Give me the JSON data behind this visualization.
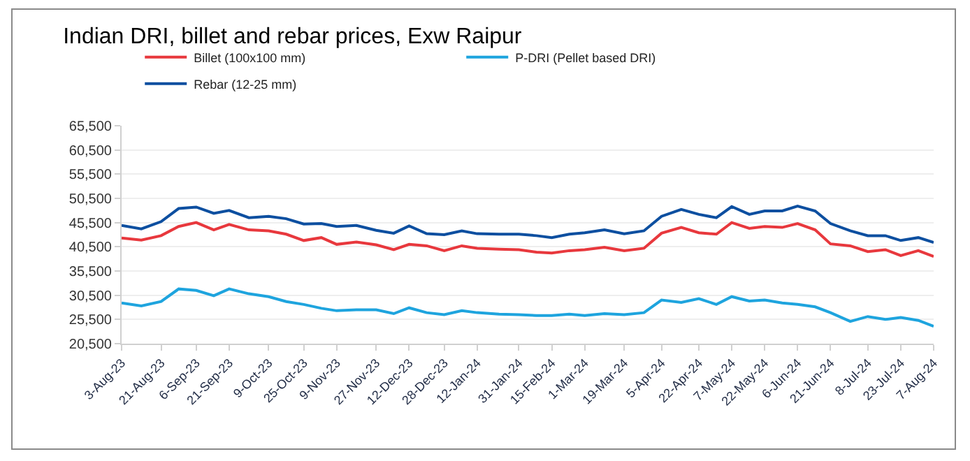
{
  "chart_data": {
    "type": "line",
    "title": "Indian DRI, billet and rebar prices, Exw Raipur",
    "x": [
      "2023-08-03",
      "2023-08-12",
      "2023-08-21",
      "2023-08-29",
      "2023-09-06",
      "2023-09-14",
      "2023-09-21",
      "2023-09-30",
      "2023-10-09",
      "2023-10-17",
      "2023-10-25",
      "2023-11-02",
      "2023-11-09",
      "2023-11-18",
      "2023-11-27",
      "2023-12-05",
      "2023-12-12",
      "2023-12-20",
      "2023-12-28",
      "2024-01-05",
      "2024-01-12",
      "2024-01-22",
      "2024-01-31",
      "2024-02-08",
      "2024-02-15",
      "2024-02-23",
      "2024-03-01",
      "2024-03-10",
      "2024-03-19",
      "2024-03-28",
      "2024-04-05",
      "2024-04-14",
      "2024-04-22",
      "2024-04-30",
      "2024-05-07",
      "2024-05-15",
      "2024-05-22",
      "2024-05-30",
      "2024-06-06",
      "2024-06-14",
      "2024-06-21",
      "2024-06-30",
      "2024-07-08",
      "2024-07-16",
      "2024-07-23",
      "2024-07-31",
      "2024-08-07"
    ],
    "series": [
      {
        "name": "Billet (100x100 mm)",
        "color": "#e8383d",
        "values": [
          42300,
          41900,
          42800,
          44700,
          45500,
          44000,
          45100,
          44000,
          43800,
          43100,
          41800,
          42400,
          41000,
          41500,
          40900,
          39900,
          41000,
          40700,
          39700,
          40700,
          40200,
          40000,
          39900,
          39400,
          39200,
          39700,
          39900,
          40400,
          39700,
          40200,
          43300,
          44500,
          43400,
          43100,
          45500,
          44300,
          44700,
          44500,
          45300,
          44000,
          41100,
          40700,
          39500,
          39900,
          38700,
          39700,
          38500
        ]
      },
      {
        "name": "P-DRI (Pellet based DRI)",
        "color": "#1ea4de",
        "values": [
          28900,
          28300,
          29200,
          31800,
          31500,
          30400,
          31800,
          30800,
          30200,
          29200,
          28600,
          27800,
          27300,
          27500,
          27500,
          26700,
          27900,
          26900,
          26500,
          27300,
          26900,
          26600,
          26500,
          26300,
          26300,
          26600,
          26300,
          26700,
          26500,
          26900,
          29500,
          29000,
          29800,
          28600,
          30200,
          29300,
          29500,
          28900,
          28600,
          28100,
          26900,
          25100,
          26100,
          25500,
          25900,
          25300,
          24100
        ]
      },
      {
        "name": "Rebar (12-25 mm)",
        "color": "#0d4fa0",
        "values": [
          44900,
          44200,
          45700,
          48400,
          48700,
          47400,
          48000,
          46500,
          46800,
          46300,
          45200,
          45300,
          44700,
          44900,
          43900,
          43300,
          44800,
          43200,
          43000,
          43800,
          43200,
          43100,
          43100,
          42800,
          42400,
          43100,
          43400,
          44000,
          43200,
          43800,
          46800,
          48200,
          47200,
          46500,
          48800,
          47200,
          47900,
          47900,
          48900,
          47900,
          45300,
          43800,
          42800,
          42800,
          41800,
          42400,
          41400
        ]
      }
    ],
    "xlim": [
      "2023-08-03",
      "2024-08-07"
    ],
    "xticks": [
      {
        "value": "2023-08-03",
        "label": "3-Aug-23"
      },
      {
        "value": "2023-08-21",
        "label": "21-Aug-23"
      },
      {
        "value": "2023-09-06",
        "label": "6-Sep-23"
      },
      {
        "value": "2023-09-21",
        "label": "21-Sep-23"
      },
      {
        "value": "2023-10-09",
        "label": "9-Oct-23"
      },
      {
        "value": "2023-10-25",
        "label": "25-Oct-23"
      },
      {
        "value": "2023-11-09",
        "label": "9-Nov-23"
      },
      {
        "value": "2023-11-27",
        "label": "27-Nov-23"
      },
      {
        "value": "2023-12-12",
        "label": "12-Dec-23"
      },
      {
        "value": "2023-12-28",
        "label": "28-Dec-23"
      },
      {
        "value": "2024-01-12",
        "label": "12-Jan-24"
      },
      {
        "value": "2024-01-31",
        "label": "31-Jan-24"
      },
      {
        "value": "2024-02-15",
        "label": "15-Feb-24"
      },
      {
        "value": "2024-03-01",
        "label": "1-Mar-24"
      },
      {
        "value": "2024-03-19",
        "label": "19-Mar-24"
      },
      {
        "value": "2024-04-05",
        "label": "5-Apr-24"
      },
      {
        "value": "2024-04-22",
        "label": "22-Apr-24"
      },
      {
        "value": "2024-05-07",
        "label": "7-May-24"
      },
      {
        "value": "2024-05-22",
        "label": "22-May-24"
      },
      {
        "value": "2024-06-06",
        "label": "6-Jun-24"
      },
      {
        "value": "2024-06-21",
        "label": "21-Jun-24"
      },
      {
        "value": "2024-07-08",
        "label": "8-Jul-24"
      },
      {
        "value": "2024-07-23",
        "label": "23-Jul-24"
      },
      {
        "value": "2024-08-07",
        "label": "7-Aug-24"
      }
    ],
    "ylim": [
      20500,
      65500
    ],
    "yticks": [
      {
        "value": 20500,
        "label": "20,500"
      },
      {
        "value": 25500,
        "label": "25,500"
      },
      {
        "value": 30500,
        "label": "30,500"
      },
      {
        "value": 35500,
        "label": "35,500"
      },
      {
        "value": 40500,
        "label": "40,500"
      },
      {
        "value": 45500,
        "label": "45,500"
      },
      {
        "value": 50500,
        "label": "50,500"
      },
      {
        "value": 55500,
        "label": "55,500"
      },
      {
        "value": 60500,
        "label": "60,500"
      },
      {
        "value": 65500,
        "label": "65,500"
      }
    ],
    "grid": "y",
    "legend": "top",
    "marker": "none",
    "line_style": "solid"
  }
}
